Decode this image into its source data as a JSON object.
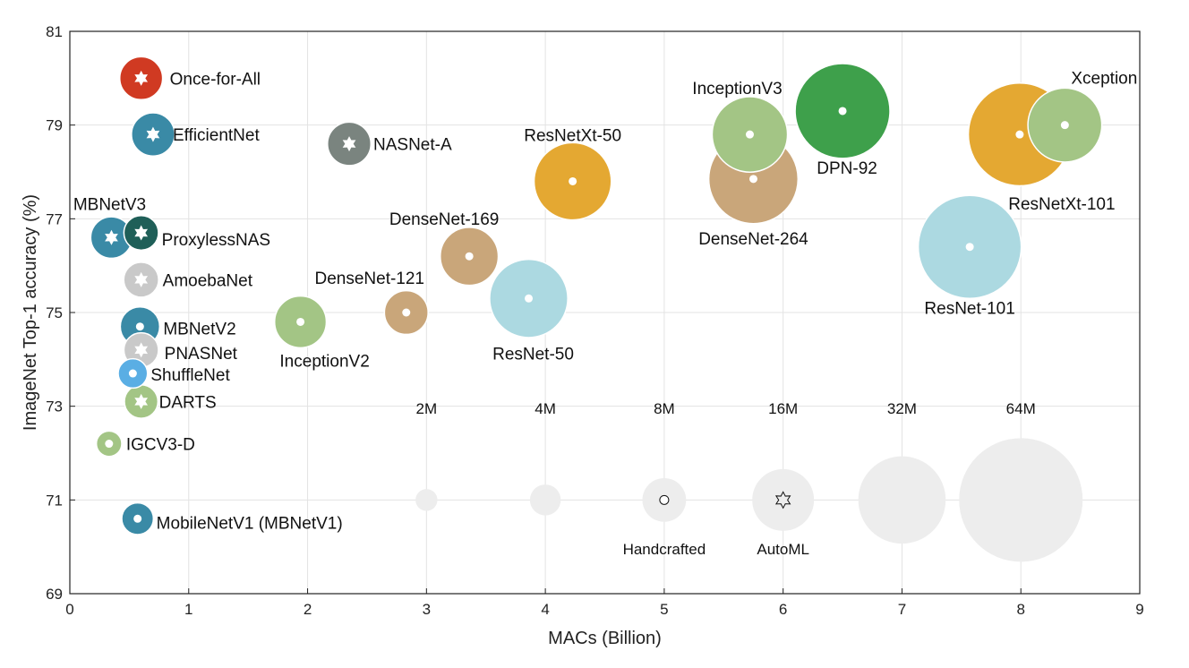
{
  "chart_data": {
    "type": "scatter",
    "title": "",
    "xlabel": "MACs (Billion)",
    "ylabel": "ImageNet Top-1 accuracy (%)",
    "xlim": [
      0,
      9
    ],
    "ylim": [
      69,
      81
    ],
    "xticks": [
      0,
      1,
      2,
      3,
      4,
      5,
      6,
      7,
      8,
      9
    ],
    "yticks": [
      69,
      71,
      73,
      75,
      77,
      79,
      81
    ],
    "grid": true,
    "points": [
      {
        "name": "Once-for-All",
        "x": 0.6,
        "y": 80.0,
        "params_m": 7.7,
        "type": "AutoML",
        "color": "#d03a22"
      },
      {
        "name": "EfficientNet",
        "x": 0.7,
        "y": 78.8,
        "params_m": 7.8,
        "type": "AutoML",
        "color": "#3a8aa6"
      },
      {
        "name": "NASNet-A",
        "x": 2.35,
        "y": 78.6,
        "params_m": 7.9,
        "type": "AutoML",
        "color": "#7a847f"
      },
      {
        "name": "MBNetV3",
        "x": 0.35,
        "y": 76.6,
        "params_m": 7.2,
        "type": "AutoML",
        "color": "#3a8aa6"
      },
      {
        "name": "ProxylessNAS",
        "x": 0.6,
        "y": 76.7,
        "params_m": 5.0,
        "type": "AutoML",
        "color": "#1f5f58"
      },
      {
        "name": "AmoebaNet",
        "x": 0.6,
        "y": 75.7,
        "params_m": 5.1,
        "type": "AutoML",
        "color": "#c9c9c9"
      },
      {
        "name": "MBNetV2",
        "x": 0.59,
        "y": 74.7,
        "params_m": 6.5,
        "type": "Handcrafted",
        "color": "#3a8aa6"
      },
      {
        "name": "PNASNet",
        "x": 0.6,
        "y": 74.2,
        "params_m": 5.0,
        "type": "AutoML",
        "color": "#c9c9c9"
      },
      {
        "name": "ShuffleNet",
        "x": 0.53,
        "y": 73.7,
        "params_m": 3.6,
        "type": "Handcrafted",
        "color": "#5aaee4"
      },
      {
        "name": "DARTS",
        "x": 0.6,
        "y": 73.1,
        "params_m": 4.7,
        "type": "AutoML",
        "color": "#a3c585"
      },
      {
        "name": "IGCV3-D",
        "x": 0.33,
        "y": 72.2,
        "params_m": 2.7,
        "type": "Handcrafted",
        "color": "#a3c585"
      },
      {
        "name": "MobileNetV1 (MBNetV1)",
        "x": 0.57,
        "y": 70.6,
        "params_m": 4.2,
        "type": "Handcrafted",
        "color": "#3a8aa6"
      },
      {
        "name": "InceptionV2",
        "x": 1.94,
        "y": 74.8,
        "params_m": 11.2,
        "type": "Handcrafted",
        "color": "#a3c585"
      },
      {
        "name": "DenseNet-121",
        "x": 2.83,
        "y": 75.0,
        "params_m": 8.0,
        "type": "Handcrafted",
        "color": "#c9a67a"
      },
      {
        "name": "DenseNet-169",
        "x": 3.36,
        "y": 76.2,
        "params_m": 14.1,
        "type": "Handcrafted",
        "color": "#c9a67a"
      },
      {
        "name": "ResNet-50",
        "x": 3.86,
        "y": 75.3,
        "params_m": 25.6,
        "type": "Handcrafted",
        "color": "#acd9e1"
      },
      {
        "name": "ResNetXt-50",
        "x": 4.23,
        "y": 77.8,
        "params_m": 25.0,
        "type": "Handcrafted",
        "color": "#e4a832"
      },
      {
        "name": "InceptionV3",
        "x": 5.72,
        "y": 78.8,
        "params_m": 23.8,
        "type": "Handcrafted",
        "color": "#a3c585"
      },
      {
        "name": "DenseNet-264",
        "x": 5.75,
        "y": 77.85,
        "params_m": 33.4,
        "type": "Handcrafted",
        "color": "#c9a67a"
      },
      {
        "name": "DPN-92",
        "x": 6.5,
        "y": 79.3,
        "params_m": 37.7,
        "type": "Handcrafted",
        "color": "#3ea04b"
      },
      {
        "name": "ResNet-101",
        "x": 7.57,
        "y": 76.4,
        "params_m": 44.5,
        "type": "Handcrafted",
        "color": "#acd9e1"
      },
      {
        "name": "ResNetXt-101",
        "x": 7.99,
        "y": 78.8,
        "params_m": 44.2,
        "type": "Handcrafted",
        "color": "#e4a832"
      },
      {
        "name": "Xception",
        "x": 8.37,
        "y": 79.0,
        "params_m": 22.9,
        "type": "Handcrafted",
        "color": "#a3c585"
      }
    ],
    "size_legend": [
      {
        "label": "2M",
        "params_m": 2,
        "x": 3,
        "y": 71
      },
      {
        "label": "4M",
        "params_m": 4,
        "x": 4,
        "y": 71
      },
      {
        "label": "8M",
        "params_m": 8,
        "x": 5,
        "y": 71
      },
      {
        "label": "16M",
        "params_m": 16,
        "x": 6,
        "y": 71
      },
      {
        "label": "32M",
        "params_m": 32,
        "x": 7,
        "y": 71
      },
      {
        "label": "64M",
        "params_m": 64,
        "x": 8,
        "y": 71
      }
    ],
    "marker_legend": [
      {
        "label": "Handcrafted",
        "marker": "circle-dot",
        "x": 5,
        "y": 71
      },
      {
        "label": "AutoML",
        "marker": "star",
        "x": 6,
        "y": 71
      }
    ],
    "legend_color": "#ededed"
  }
}
